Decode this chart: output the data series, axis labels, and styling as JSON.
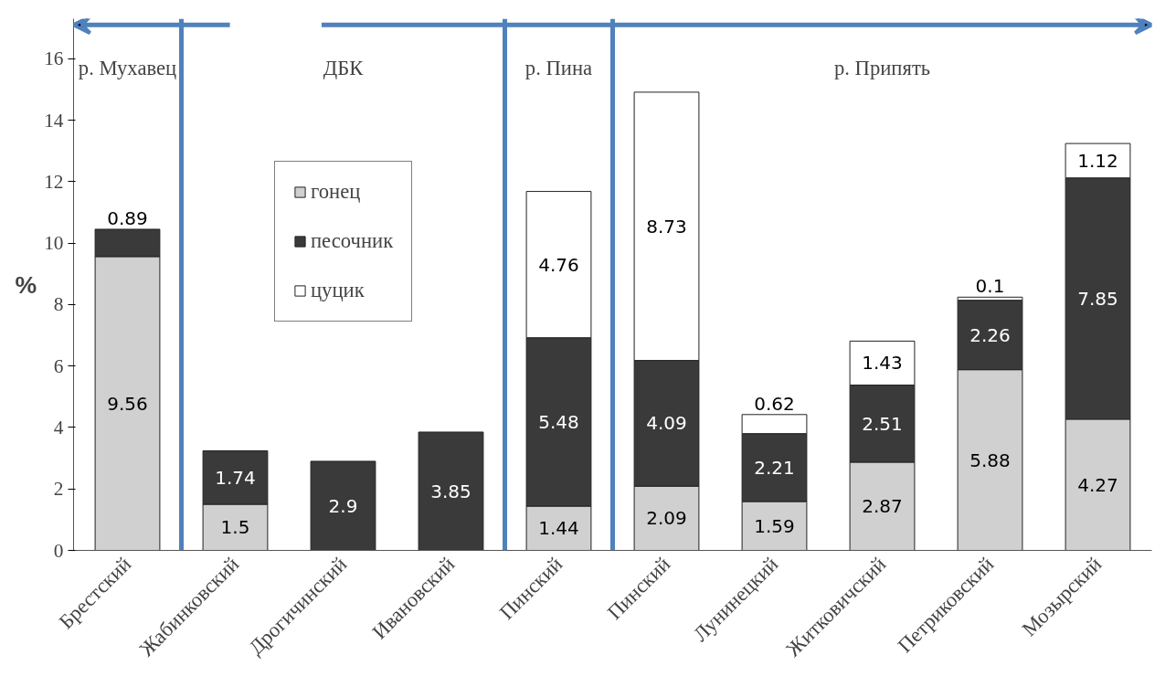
{
  "chart_data": {
    "type": "bar",
    "stacked": true,
    "ylabel": "%",
    "categories": [
      "Брестский",
      "Жабинковский",
      "Дрогичинский",
      "Ивановский",
      "Пинский",
      "Пинский",
      "Лунинецкий",
      "Житковичский",
      "Петриковский",
      "Мозырский"
    ],
    "series": [
      {
        "name": "гонец",
        "color": "#d0d0d0",
        "values": [
          9.56,
          1.5,
          null,
          null,
          1.44,
          2.09,
          1.59,
          2.87,
          5.88,
          4.27
        ]
      },
      {
        "name": "песочник",
        "color": "#3a3a3a",
        "values": [
          0.89,
          1.74,
          2.9,
          3.85,
          5.48,
          4.09,
          2.21,
          2.51,
          2.26,
          7.85
        ]
      },
      {
        "name": "цуцик",
        "color": "#ffffff",
        "values": [
          null,
          null,
          null,
          null,
          4.76,
          8.73,
          0.62,
          1.43,
          0.1,
          1.12
        ]
      }
    ],
    "ylim": [
      0,
      17.3
    ],
    "yticks": [
      0,
      2,
      4,
      6,
      8,
      10,
      12,
      14,
      16
    ],
    "data_labels": true,
    "legend": "top left",
    "grid": false,
    "annotations": [
      "р. Мухавец",
      "ДБК",
      "р. Пина",
      "р. Припять"
    ]
  }
}
